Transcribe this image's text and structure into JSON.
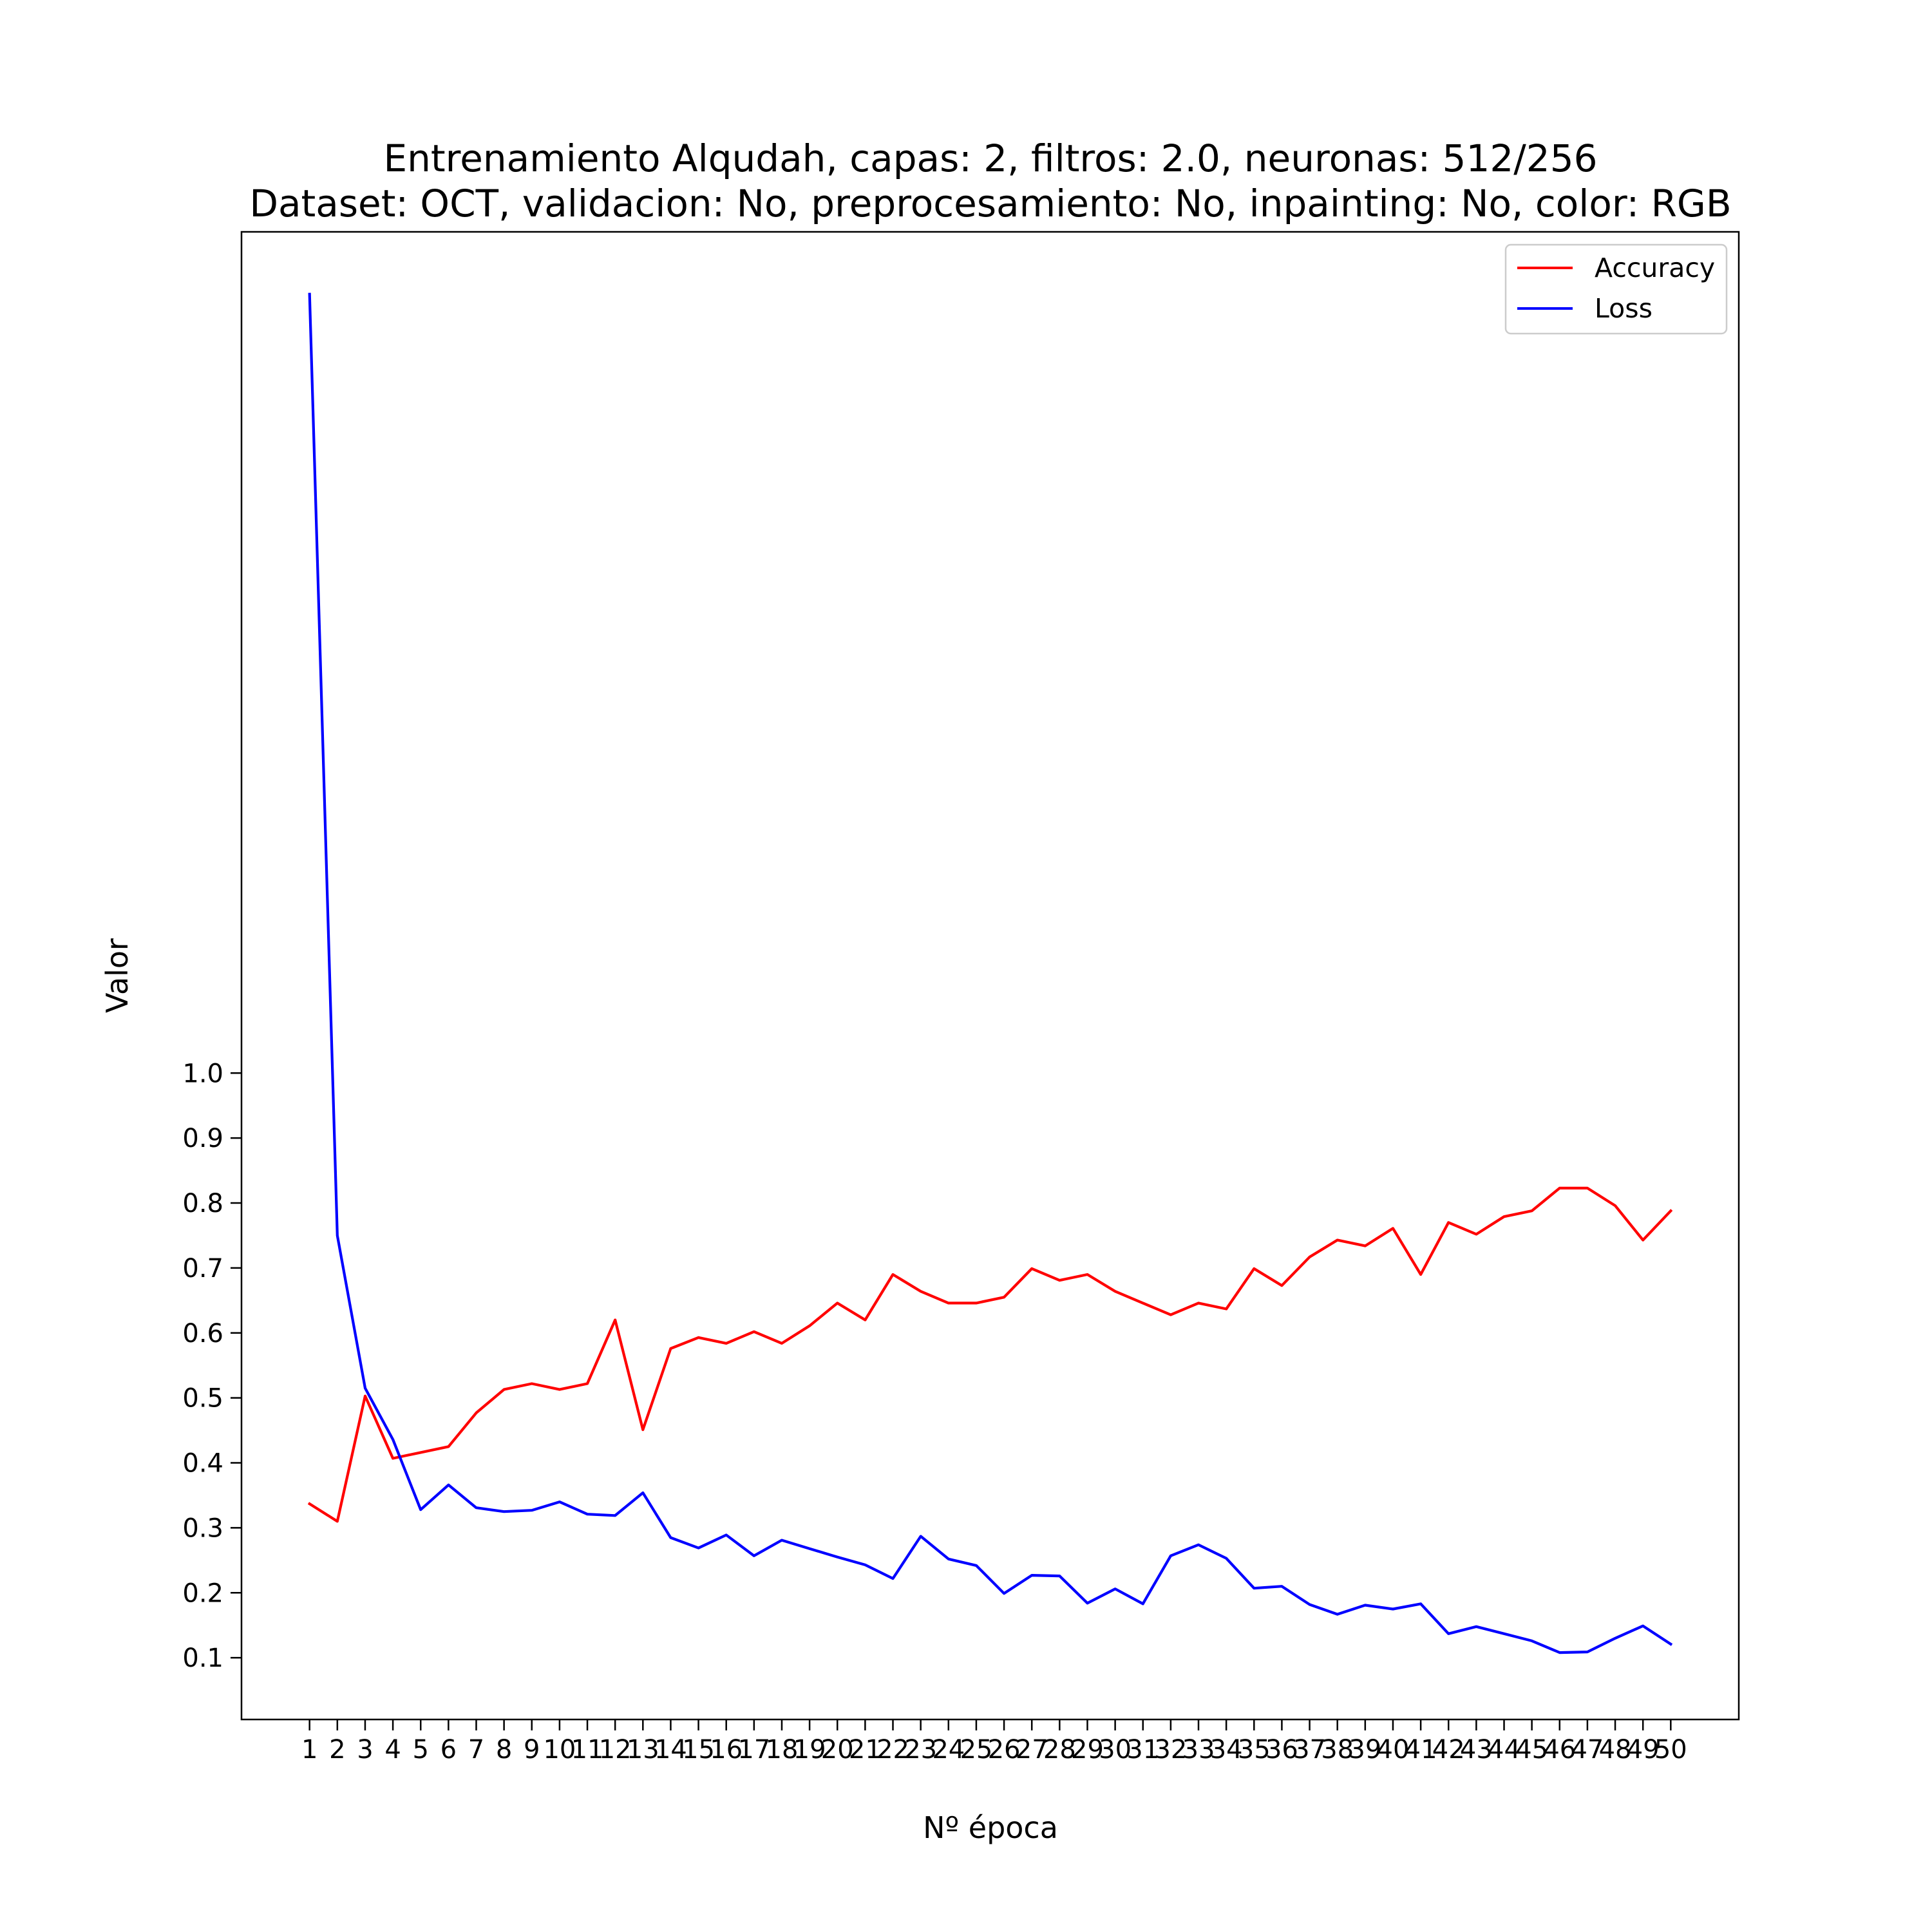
{
  "chart_data": {
    "type": "line",
    "title": "Entrenamiento Alqudah, capas: 2, filtros: 2.0, neuronas: 512/256",
    "subtitle": "Dataset: OCT, validacion: No, preprocesamiento: No, inpainting: No, color: RGB",
    "xlabel": "Nº época",
    "ylabel": "Valor",
    "x": [
      1,
      2,
      3,
      4,
      5,
      6,
      7,
      8,
      9,
      10,
      11,
      12,
      13,
      14,
      15,
      16,
      17,
      18,
      19,
      20,
      21,
      22,
      23,
      24,
      25,
      26,
      27,
      28,
      29,
      30,
      31,
      32,
      33,
      34,
      35,
      36,
      37,
      38,
      39,
      40,
      41,
      42,
      43,
      44,
      45,
      46,
      47,
      48,
      49,
      50
    ],
    "xticks": [
      "1",
      "2",
      "3",
      "4",
      "5",
      "6",
      "7",
      "8",
      "9",
      "10",
      "11",
      "12",
      "13",
      "14",
      "15",
      "16",
      "17",
      "18",
      "19",
      "20",
      "21",
      "22",
      "23",
      "24",
      "25",
      "26",
      "27",
      "28",
      "29",
      "30",
      "31",
      "32",
      "33",
      "34",
      "35",
      "36",
      "37",
      "38",
      "39",
      "40",
      "41",
      "42",
      "43",
      "44",
      "45",
      "46",
      "47",
      "48",
      "49",
      "50"
    ],
    "yticks": [
      "0.1",
      "0.2",
      "0.3",
      "0.4",
      "0.5",
      "0.6",
      "0.7",
      "0.8",
      "0.9",
      "1.0"
    ],
    "ylim": [
      0.005,
      2.295
    ],
    "xlim": [
      -1.45,
      52.45
    ],
    "grid": false,
    "legend_position": "top-right",
    "series": [
      {
        "name": "Accuracy",
        "color": "#ff0000",
        "values": [
          0.337,
          0.31,
          0.503,
          0.407,
          0.416,
          0.425,
          0.477,
          0.513,
          0.522,
          0.513,
          0.522,
          0.62,
          0.451,
          0.576,
          0.593,
          0.584,
          0.602,
          0.584,
          0.611,
          0.646,
          0.62,
          0.69,
          0.664,
          0.646,
          0.646,
          0.655,
          0.699,
          0.681,
          0.69,
          0.664,
          0.646,
          0.628,
          0.646,
          0.637,
          0.699,
          0.673,
          0.717,
          0.743,
          0.734,
          0.761,
          0.69,
          0.77,
          0.752,
          0.779,
          0.788,
          0.823,
          0.823,
          0.796,
          0.743,
          0.788
        ]
      },
      {
        "name": "Loss",
        "color": "#0000ff",
        "values": [
          2.199,
          0.75,
          0.515,
          0.436,
          0.328,
          0.366,
          0.331,
          0.325,
          0.327,
          0.34,
          0.321,
          0.319,
          0.354,
          0.285,
          0.269,
          0.289,
          0.257,
          0.281,
          0.268,
          0.255,
          0.243,
          0.222,
          0.287,
          0.252,
          0.242,
          0.199,
          0.227,
          0.226,
          0.184,
          0.206,
          0.183,
          0.257,
          0.274,
          0.253,
          0.207,
          0.21,
          0.182,
          0.167,
          0.181,
          0.175,
          0.183,
          0.137,
          0.148,
          0.137,
          0.126,
          0.108,
          0.109,
          0.13,
          0.149,
          0.121
        ]
      }
    ]
  }
}
